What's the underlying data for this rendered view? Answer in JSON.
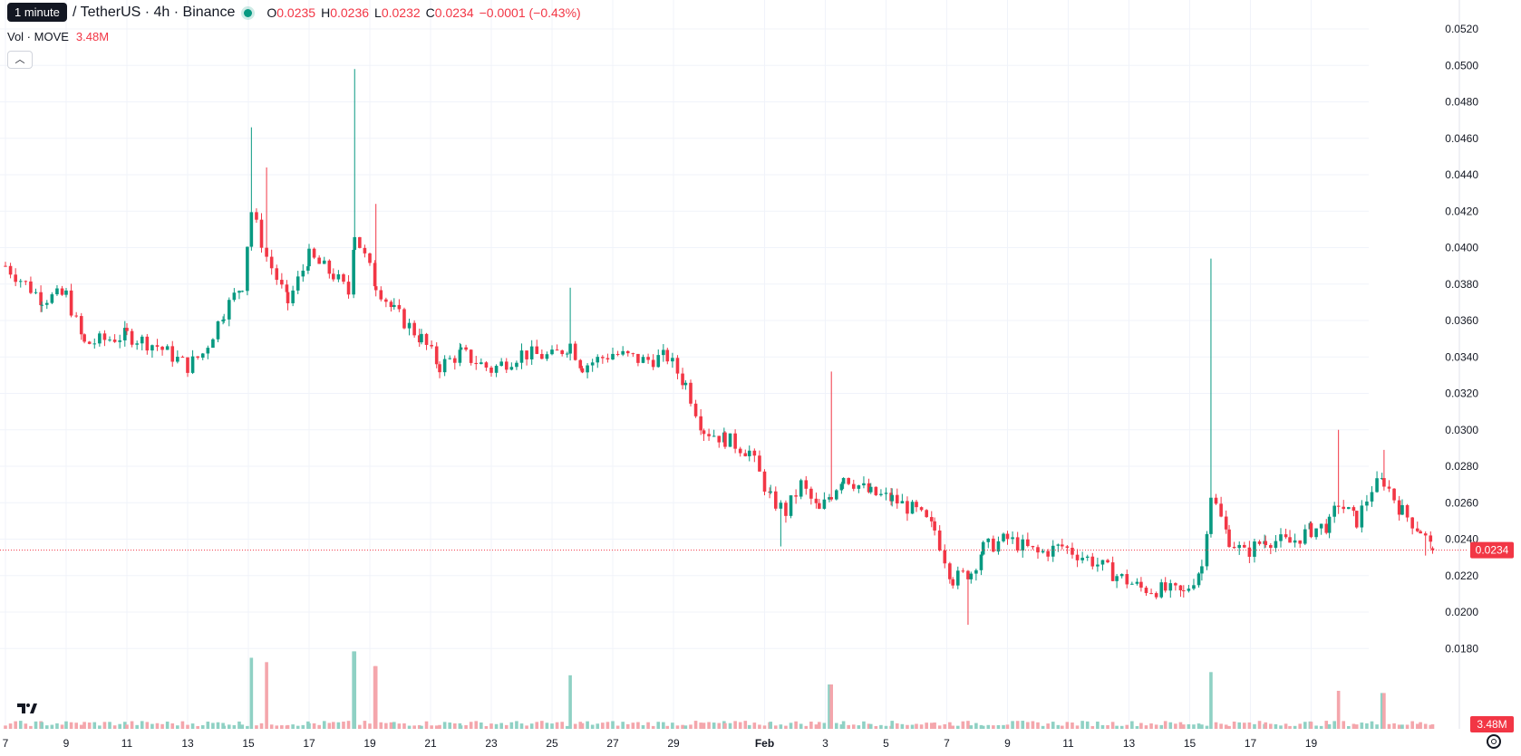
{
  "header": {
    "tooltip": "1 minute",
    "symbol": "/ TetherUS · 4h · Binance",
    "status_color": "#089981",
    "ohlc": {
      "o_label": "O",
      "o": "0.0235",
      "h_label": "H",
      "h": "0.0236",
      "l_label": "L",
      "l": "0.0232",
      "c_label": "C",
      "c": "0.0234",
      "change": "−0.0001 (−0.43%)"
    },
    "volume_label": "Vol · MOVE",
    "volume_value": "3.48M"
  },
  "icons": {
    "collapse": "chevron-up-icon",
    "logo": "tradingview-logo-icon",
    "settings": "gear-icon"
  },
  "colors": {
    "up": "#089981",
    "down": "#f23645",
    "vol_up": "#8fd1c4",
    "vol_down": "#f4a6ac"
  },
  "chart_data": {
    "type": "candlestick",
    "y_axis": {
      "min": 0.0165,
      "max": 0.053,
      "ticks": [
        "0.0180",
        "0.0200",
        "0.0220",
        "0.0240",
        "0.0260",
        "0.0280",
        "0.0300",
        "0.0320",
        "0.0340",
        "0.0360",
        "0.0380",
        "0.0400",
        "0.0420",
        "0.0440",
        "0.0460",
        "0.0480",
        "0.0500",
        "0.0520"
      ]
    },
    "x_axis": {
      "ticks": [
        "7",
        "9",
        "11",
        "13",
        "15",
        "17",
        "19",
        "21",
        "23",
        "25",
        "27",
        "29",
        "Feb",
        "3",
        "5",
        "7",
        "9",
        "11",
        "13",
        "15",
        "17",
        "19"
      ]
    },
    "last_price": "0.0234",
    "last_volume": "3.48M",
    "grid": true,
    "series": [
      {
        "day": 7.0,
        "close": 0.039,
        "spike_high": null
      },
      {
        "day": 8.2,
        "close": 0.0372,
        "spike_high": null
      },
      {
        "day": 9.0,
        "close": 0.0374,
        "spike_high": null
      },
      {
        "day": 9.6,
        "close": 0.0347,
        "spike_high": null
      },
      {
        "day": 11.0,
        "close": 0.0352,
        "spike_high": null
      },
      {
        "day": 12.0,
        "close": 0.0346,
        "spike_high": null
      },
      {
        "day": 13.0,
        "close": 0.0335,
        "spike_high": null
      },
      {
        "day": 13.5,
        "close": 0.0342,
        "spike_high": null
      },
      {
        "day": 14.2,
        "close": 0.0365,
        "spike_high": null
      },
      {
        "day": 14.8,
        "close": 0.038,
        "spike_high": null
      },
      {
        "day": 15.1,
        "close": 0.042,
        "spike_high": 0.0466
      },
      {
        "day": 15.6,
        "close": 0.0395,
        "spike_high": 0.0444
      },
      {
        "day": 16.3,
        "close": 0.037,
        "spike_high": null
      },
      {
        "day": 17.0,
        "close": 0.0395,
        "spike_high": null
      },
      {
        "day": 17.8,
        "close": 0.0385,
        "spike_high": null
      },
      {
        "day": 18.3,
        "close": 0.0375,
        "spike_high": null
      },
      {
        "day": 18.5,
        "close": 0.0408,
        "spike_high": 0.0498
      },
      {
        "day": 19.2,
        "close": 0.038,
        "spike_high": 0.0424
      },
      {
        "day": 19.8,
        "close": 0.0365,
        "spike_high": null
      },
      {
        "day": 20.7,
        "close": 0.035,
        "spike_high": null
      },
      {
        "day": 21.3,
        "close": 0.0335,
        "spike_high": null
      },
      {
        "day": 22.0,
        "close": 0.0342,
        "spike_high": null
      },
      {
        "day": 23.0,
        "close": 0.0333,
        "spike_high": null
      },
      {
        "day": 24.0,
        "close": 0.0342,
        "spike_high": null
      },
      {
        "day": 25.0,
        "close": 0.034,
        "spike_high": null
      },
      {
        "day": 25.6,
        "close": 0.0347,
        "spike_high": 0.0378
      },
      {
        "day": 26.0,
        "close": 0.0335,
        "spike_high": null
      },
      {
        "day": 27.0,
        "close": 0.0342,
        "spike_high": null
      },
      {
        "day": 28.0,
        "close": 0.0338,
        "spike_high": null
      },
      {
        "day": 28.8,
        "close": 0.034,
        "spike_high": null
      },
      {
        "day": 29.4,
        "close": 0.0325,
        "spike_high": null
      },
      {
        "day": 30.0,
        "close": 0.03,
        "spike_high": null
      },
      {
        "day": 30.7,
        "close": 0.0295,
        "spike_high": null
      },
      {
        "day": 31.5,
        "close": 0.0288,
        "spike_high": null
      },
      {
        "day": 32.2,
        "close": 0.0262,
        "spike_high": null
      },
      {
        "day": 32.7,
        "close": 0.0255,
        "spike_high": null
      },
      {
        "day": 33.2,
        "close": 0.027,
        "spike_high": null
      },
      {
        "day": 33.8,
        "close": 0.0255,
        "spike_high": null
      },
      {
        "day": 34.2,
        "close": 0.0265,
        "spike_high": 0.0332
      },
      {
        "day": 34.6,
        "close": 0.0275,
        "spike_high": null
      },
      {
        "day": 35.5,
        "close": 0.0265,
        "spike_high": null
      },
      {
        "day": 36.2,
        "close": 0.0262,
        "spike_high": null
      },
      {
        "day": 37.0,
        "close": 0.0255,
        "spike_high": null
      },
      {
        "day": 37.6,
        "close": 0.0245,
        "spike_high": null
      },
      {
        "day": 38.2,
        "close": 0.0218,
        "spike_high": null
      },
      {
        "day": 38.8,
        "close": 0.0222,
        "spike_high": null
      },
      {
        "day": 39.2,
        "close": 0.0235,
        "spike_high": null
      },
      {
        "day": 40.0,
        "close": 0.024,
        "spike_high": null
      },
      {
        "day": 41.0,
        "close": 0.0232,
        "spike_high": null
      },
      {
        "day": 41.8,
        "close": 0.0236,
        "spike_high": null
      },
      {
        "day": 42.8,
        "close": 0.0228,
        "spike_high": null
      },
      {
        "day": 43.6,
        "close": 0.022,
        "spike_high": null
      },
      {
        "day": 44.4,
        "close": 0.0213,
        "spike_high": null
      },
      {
        "day": 45.2,
        "close": 0.0212,
        "spike_high": null
      },
      {
        "day": 45.8,
        "close": 0.021,
        "spike_high": null
      },
      {
        "day": 46.4,
        "close": 0.0225,
        "spike_high": null
      },
      {
        "day": 46.7,
        "close": 0.0265,
        "spike_high": 0.0394
      },
      {
        "day": 47.3,
        "close": 0.024,
        "spike_high": null
      },
      {
        "day": 47.8,
        "close": 0.0232,
        "spike_high": null
      },
      {
        "day": 48.5,
        "close": 0.024,
        "spike_high": null
      },
      {
        "day": 49.3,
        "close": 0.0238,
        "spike_high": null
      },
      {
        "day": 50.0,
        "close": 0.0245,
        "spike_high": null
      },
      {
        "day": 50.6,
        "close": 0.0248,
        "spike_high": null
      },
      {
        "day": 50.9,
        "close": 0.026,
        "spike_high": 0.03
      },
      {
        "day": 51.5,
        "close": 0.025,
        "spike_high": null
      },
      {
        "day": 52.0,
        "close": 0.0268,
        "spike_high": null
      },
      {
        "day": 52.4,
        "close": 0.0272,
        "spike_high": 0.0289
      },
      {
        "day": 53.0,
        "close": 0.0255,
        "spike_high": null
      },
      {
        "day": 53.6,
        "close": 0.0245,
        "spike_high": null
      },
      {
        "day": 54.0,
        "close": 0.0234,
        "spike_high": null
      }
    ]
  }
}
